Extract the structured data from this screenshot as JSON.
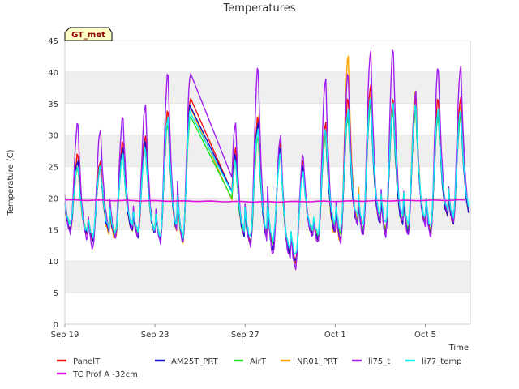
{
  "chart_data": {
    "type": "line",
    "title": "Temperatures",
    "xlabel": "Time",
    "ylabel": "Temperature (C)",
    "site_badge": "GT_met",
    "x_unit": "date (2023 assumed)",
    "xlim": [
      "Sep 19",
      "Oct 7 00:00"
    ],
    "ylim": [
      0,
      45
    ],
    "y_ticks": [
      0,
      5,
      10,
      15,
      20,
      25,
      30,
      35,
      40,
      45
    ],
    "x_ticks": [
      {
        "value": 0,
        "label": "Sep 19"
      },
      {
        "value": 4,
        "label": "Sep 23"
      },
      {
        "value": 8,
        "label": "Sep 27"
      },
      {
        "value": 12,
        "label": "Oct 1"
      },
      {
        "value": 16,
        "label": "Oct 5"
      }
    ],
    "legend_position": "bottom",
    "grid": "horizontal alternating bands",
    "series_meta": [
      {
        "name": "PanelT",
        "color": "#ee1111"
      },
      {
        "name": "AM25T_PRT",
        "color": "#1a10cc"
      },
      {
        "name": "AirT",
        "color": "#22dd22"
      },
      {
        "name": "NR01_PRT",
        "color": "#ffa500"
      },
      {
        "name": "li75_t",
        "color": "#a020f0"
      },
      {
        "name": "li77_temp",
        "color": "#11eeee"
      },
      {
        "name": "TC Prof A -32cm",
        "color": "#dd11dd"
      }
    ],
    "daily_extremes_note": "day index from Sep 19; values are approximate daily min / max per series",
    "days": [
      0,
      1,
      2,
      3,
      4,
      5,
      6,
      7,
      8,
      9,
      10,
      11,
      12,
      13,
      14,
      15,
      16,
      17
    ],
    "daily_min": {
      "PanelT": [
        15,
        13.5,
        14,
        14,
        13.5,
        13.5,
        null,
        12,
        13,
        12,
        10,
        13.5,
        13.5,
        14.5,
        14.5,
        14.5,
        14.5,
        16
      ],
      "AM25T_PRT": [
        15,
        13.5,
        14,
        14,
        13.5,
        13.5,
        null,
        12,
        13,
        12,
        10,
        13.5,
        13.5,
        14.5,
        14.5,
        14.5,
        14.5,
        16
      ],
      "AirT": [
        16,
        14,
        14.5,
        14.5,
        14,
        14,
        null,
        11.5,
        13,
        13,
        10,
        14,
        14.5,
        15,
        15,
        15,
        15,
        17
      ],
      "NR01_PRT": [
        15,
        13.5,
        13.5,
        14,
        13.5,
        13,
        null,
        9,
        13,
        12,
        9.5,
        13.5,
        13,
        14.5,
        15,
        15,
        14.5,
        16
      ],
      "li75_t": [
        14.5,
        12,
        14,
        14,
        13,
        13,
        null,
        12,
        12.5,
        11,
        9,
        13,
        13,
        14,
        14,
        14,
        14,
        16
      ],
      "li77_temp": [
        16,
        14,
        14.5,
        15,
        14,
        14,
        null,
        13,
        14,
        13.5,
        11,
        14.5,
        15,
        16,
        16,
        16,
        15.5,
        17
      ]
    },
    "daily_max": {
      "PanelT": [
        27,
        26,
        29,
        30,
        34,
        36,
        null,
        28,
        33,
        29,
        26,
        32,
        36,
        38,
        36,
        36,
        36,
        36
      ],
      "AM25T_PRT": [
        26,
        25,
        28,
        29,
        33,
        35,
        null,
        27,
        32,
        28,
        25,
        31,
        34,
        36,
        35,
        35,
        34,
        34
      ],
      "AirT": [
        25,
        25,
        27,
        28,
        32,
        33,
        null,
        26,
        30,
        27,
        25,
        30,
        33,
        35,
        34,
        34,
        33,
        33
      ],
      "NR01_PRT": [
        25,
        25,
        28,
        29,
        33,
        35,
        null,
        27,
        33,
        28,
        25,
        31,
        42.7,
        37,
        35,
        37.5,
        34,
        35
      ],
      "li75_t": [
        32,
        31,
        33,
        35,
        40,
        40,
        null,
        32,
        41,
        30,
        27,
        39,
        40,
        43.5,
        44,
        37,
        41,
        41
      ],
      "li77_temp": [
        25,
        25,
        27,
        28,
        33,
        34,
        null,
        26,
        31,
        27,
        24,
        31,
        34,
        36,
        35,
        35,
        34,
        34
      ]
    },
    "gap": {
      "from_day": 5.6,
      "to_day": 7.4,
      "note": "straight-line interpolation across missing data"
    },
    "tc_prof_a_32cm": {
      "start": 19.7,
      "mid": 19.4,
      "end": 19.7
    }
  }
}
